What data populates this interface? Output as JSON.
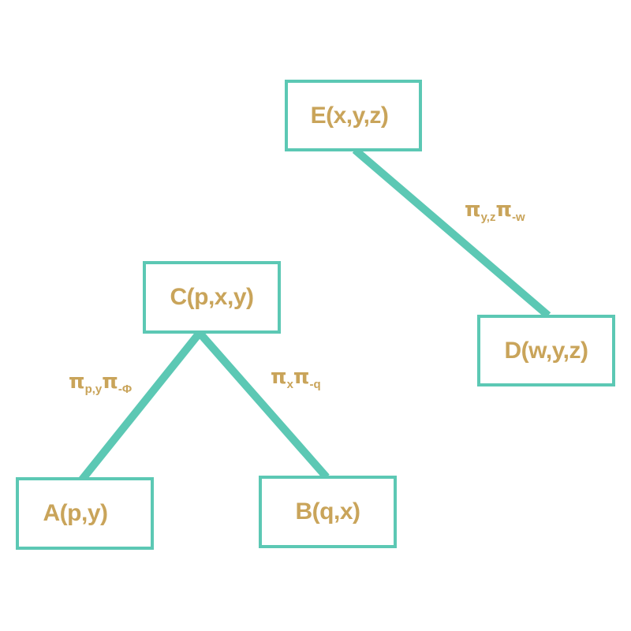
{
  "colors": {
    "node_border": "#5cc8b4",
    "edge": "#5cc8b4",
    "text": "#c9a45a"
  },
  "nodes": {
    "E": {
      "label": "E(x,y,z)"
    },
    "D": {
      "label": "D(w,y,z)"
    },
    "C": {
      "label": "C(p,x,y)"
    },
    "A": {
      "label": "A(p,y)"
    },
    "B": {
      "label": "B(q,x)"
    }
  },
  "edges": {
    "E_D": {
      "pi1": "π",
      "sub1": "y,z",
      "pi2": "π",
      "sub2": "-w"
    },
    "C_A": {
      "pi1": "π",
      "sub1": "p,y",
      "pi2": "π",
      "sub2": "-Φ"
    },
    "C_B": {
      "pi1": "π",
      "sub1": "x",
      "pi2": "π",
      "sub2": "-q"
    }
  }
}
